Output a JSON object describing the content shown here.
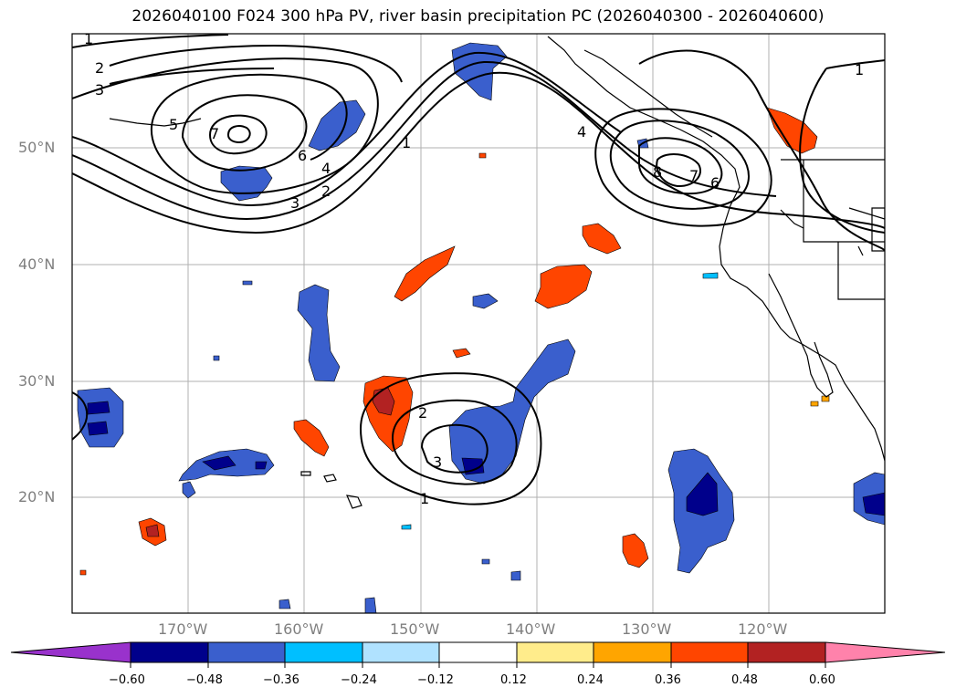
{
  "title": "2026040100 F024 300 hPa PV, river basin precipitation PC (2026040300 - 2026040600)",
  "map": {
    "lat_labels": [
      "50°N",
      "40°N",
      "30°N",
      "20°N"
    ],
    "lon_labels": [
      "170°W",
      "160°W",
      "150°W",
      "140°W",
      "130°W",
      "120°W"
    ],
    "pv_contour_labels": [
      "1",
      "2",
      "3",
      "5",
      "7",
      "6",
      "4",
      "3",
      "2",
      "1",
      "4",
      "8",
      "7",
      "6",
      "1",
      "2",
      "3",
      "1"
    ]
  },
  "colorbar": {
    "ticks": [
      "−0.60",
      "−0.48",
      "−0.36",
      "−0.24",
      "−0.12",
      "0.12",
      "0.24",
      "0.36",
      "0.48",
      "0.60"
    ],
    "colors": [
      "#9932CC",
      "#00008B",
      "#3A5FCD",
      "#00BFFF",
      "#B0E2FF",
      "#FFFFFF",
      "#FFEC8B",
      "#FFA500",
      "#FF4500",
      "#B22222",
      "#FF82AB"
    ]
  },
  "colors": {
    "grid": "#b0b0b0",
    "contour": "#000000",
    "coast": "#000000"
  }
}
